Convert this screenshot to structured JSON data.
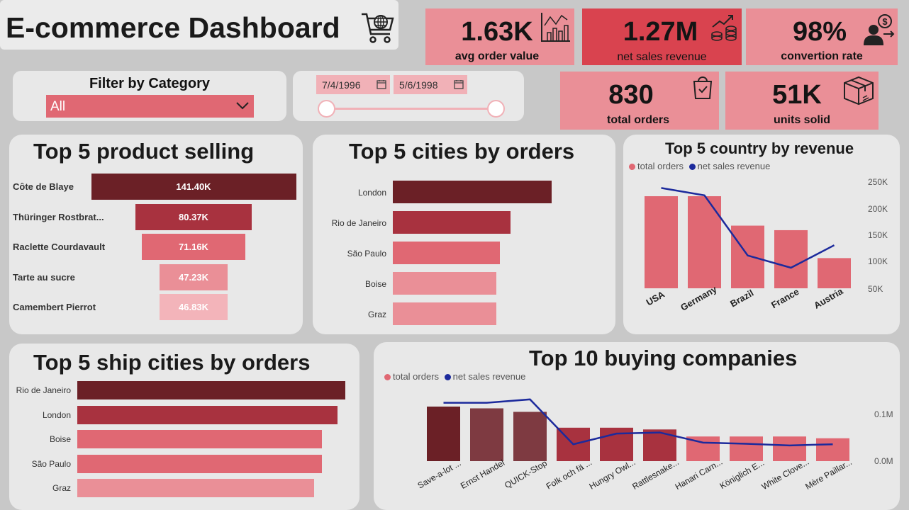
{
  "header": {
    "title": "E-commerce Dashboard",
    "icon": "shopping-cart-icon"
  },
  "kpis": {
    "avg_order_value": {
      "value": "1.63K",
      "label": "avg order value",
      "icon": "chart-icon"
    },
    "net_sales_revenue": {
      "value": "1.27M",
      "label": "net sales revenue",
      "icon": "coins-growth-icon"
    },
    "conversion_rate": {
      "value": "98%",
      "label": "convertion rate",
      "icon": "user-dollar-icon"
    },
    "total_orders": {
      "value": "830",
      "label": "total orders",
      "icon": "shopping-bag-icon"
    },
    "units_sold": {
      "value": "51K",
      "label": "units solid",
      "icon": "package-box-icon"
    }
  },
  "filters": {
    "category_label": "Filter by Category",
    "category_value": "All",
    "date_start": "7/4/1996",
    "date_end": "5/6/1998"
  },
  "colors": {
    "background": "#c8c8c8",
    "card": "#e8e8e8",
    "kpi_pink": "#ea8f97",
    "kpi_red": "#d9434f",
    "dark_red": "#6b2026",
    "line_blue": "#1c2a9c"
  },
  "chart_data": [
    {
      "type": "bar",
      "title": "Top 5 product selling",
      "orientation": "horizontal",
      "categories": [
        "Côte de Blaye",
        "Thüringer Rostbrat...",
        "Raclette Courdavault",
        "Tarte au sucre",
        "Camembert Pierrot"
      ],
      "values": [
        141400,
        80370,
        71160,
        47230,
        46830
      ],
      "data_labels": [
        "141.40K",
        "80.37K",
        "71.16K",
        "47.23K",
        "46.83K"
      ],
      "colors": [
        "#6b2026",
        "#a8323f",
        "#e06873",
        "#ea8f97",
        "#f3b4ba"
      ]
    },
    {
      "type": "bar",
      "title": "Top 5 cities by orders",
      "orientation": "horizontal",
      "categories": [
        "London",
        "Rio de Janeiro",
        "São Paulo",
        "Boise",
        "Graz"
      ],
      "values": [
        46,
        34,
        31,
        30,
        30
      ],
      "colors": [
        "#6b2026",
        "#a8323f",
        "#e06873",
        "#ea8f97",
        "#ea8f97"
      ]
    },
    {
      "type": "bar",
      "title": "Top 5 country by revenue",
      "categories": [
        "USA",
        "Germany",
        "Brazil",
        "France",
        "Austria"
      ],
      "series": [
        {
          "name": "total orders",
          "type": "bar",
          "values": [
            122,
            122,
            83,
            77,
            40
          ]
        },
        {
          "name": "net sales revenue",
          "type": "line",
          "values": [
            245000,
            230000,
            107000,
            82000,
            128000
          ]
        }
      ],
      "right_axis_ticks": [
        "250K",
        "200K",
        "150K",
        "100K",
        "50K"
      ],
      "ylim_right": [
        40000,
        260000
      ],
      "legend": "top-left"
    },
    {
      "type": "bar",
      "title": "Top 5 ship cities by orders",
      "orientation": "horizontal",
      "categories": [
        "Rio de Janeiro",
        "London",
        "Boise",
        "São Paulo",
        "Graz"
      ],
      "values": [
        34,
        33,
        31,
        31,
        30
      ],
      "colors": [
        "#6b2026",
        "#a8323f",
        "#e06873",
        "#e06873",
        "#ea8f97"
      ]
    },
    {
      "type": "bar",
      "title": "Top 10 buying companies",
      "categories": [
        "Save-a-lot ...",
        "Ernst Handel",
        "QUICK-Stop",
        "Folk och fä ...",
        "Hungry Owl...",
        "Rattlesnake...",
        "Hanari Carn...",
        "Königlich E...",
        "White Clove...",
        "Mère Paillar..."
      ],
      "series": [
        {
          "name": "total orders",
          "type": "bar",
          "values": [
            31,
            30,
            28,
            19,
            19,
            18,
            14,
            14,
            14,
            13
          ]
        },
        {
          "name": "net sales revenue",
          "type": "line",
          "values": [
            104000,
            104000,
            110000,
            30000,
            49000,
            51000,
            33000,
            31000,
            28000,
            30000
          ]
        }
      ],
      "right_axis_ticks": [
        "0.1M",
        "0.0M"
      ],
      "ylim_right": [
        0,
        130000
      ],
      "legend": "top-left"
    }
  ]
}
